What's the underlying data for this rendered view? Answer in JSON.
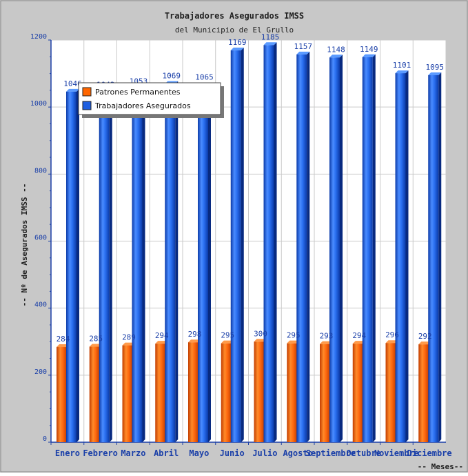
{
  "chart_data": {
    "type": "bar",
    "title": "Trabajadores Asegurados IMSS",
    "subtitle": "del Municipio de El Grullo",
    "ylabel": "-- Nº de Asegurados IMSS --",
    "xlabel": "-- Meses--",
    "ylim": [
      0,
      1200
    ],
    "yticks": [
      0,
      200,
      400,
      600,
      800,
      1000,
      1200
    ],
    "grid": true,
    "legend_position": "top-left",
    "categories": [
      "Enero",
      "Febrero",
      "Marzo",
      "Abril",
      "Mayo",
      "Junio",
      "Julio",
      "Agosto",
      "Septiembre",
      "Octubre",
      "Noviembre",
      "Diciembre"
    ],
    "series": [
      {
        "name": "Patrones Permanentes",
        "color": "#ff6600",
        "values": [
          284,
          285,
          289,
          294,
          298,
          295,
          300,
          295,
          293,
          294,
          296,
          292
        ]
      },
      {
        "name": "Trabajadores Asegurados",
        "color": "#1f5fe0",
        "values": [
          1046,
          1043,
          1053,
          1069,
          1065,
          1169,
          1185,
          1157,
          1148,
          1149,
          1101,
          1095
        ]
      }
    ]
  }
}
